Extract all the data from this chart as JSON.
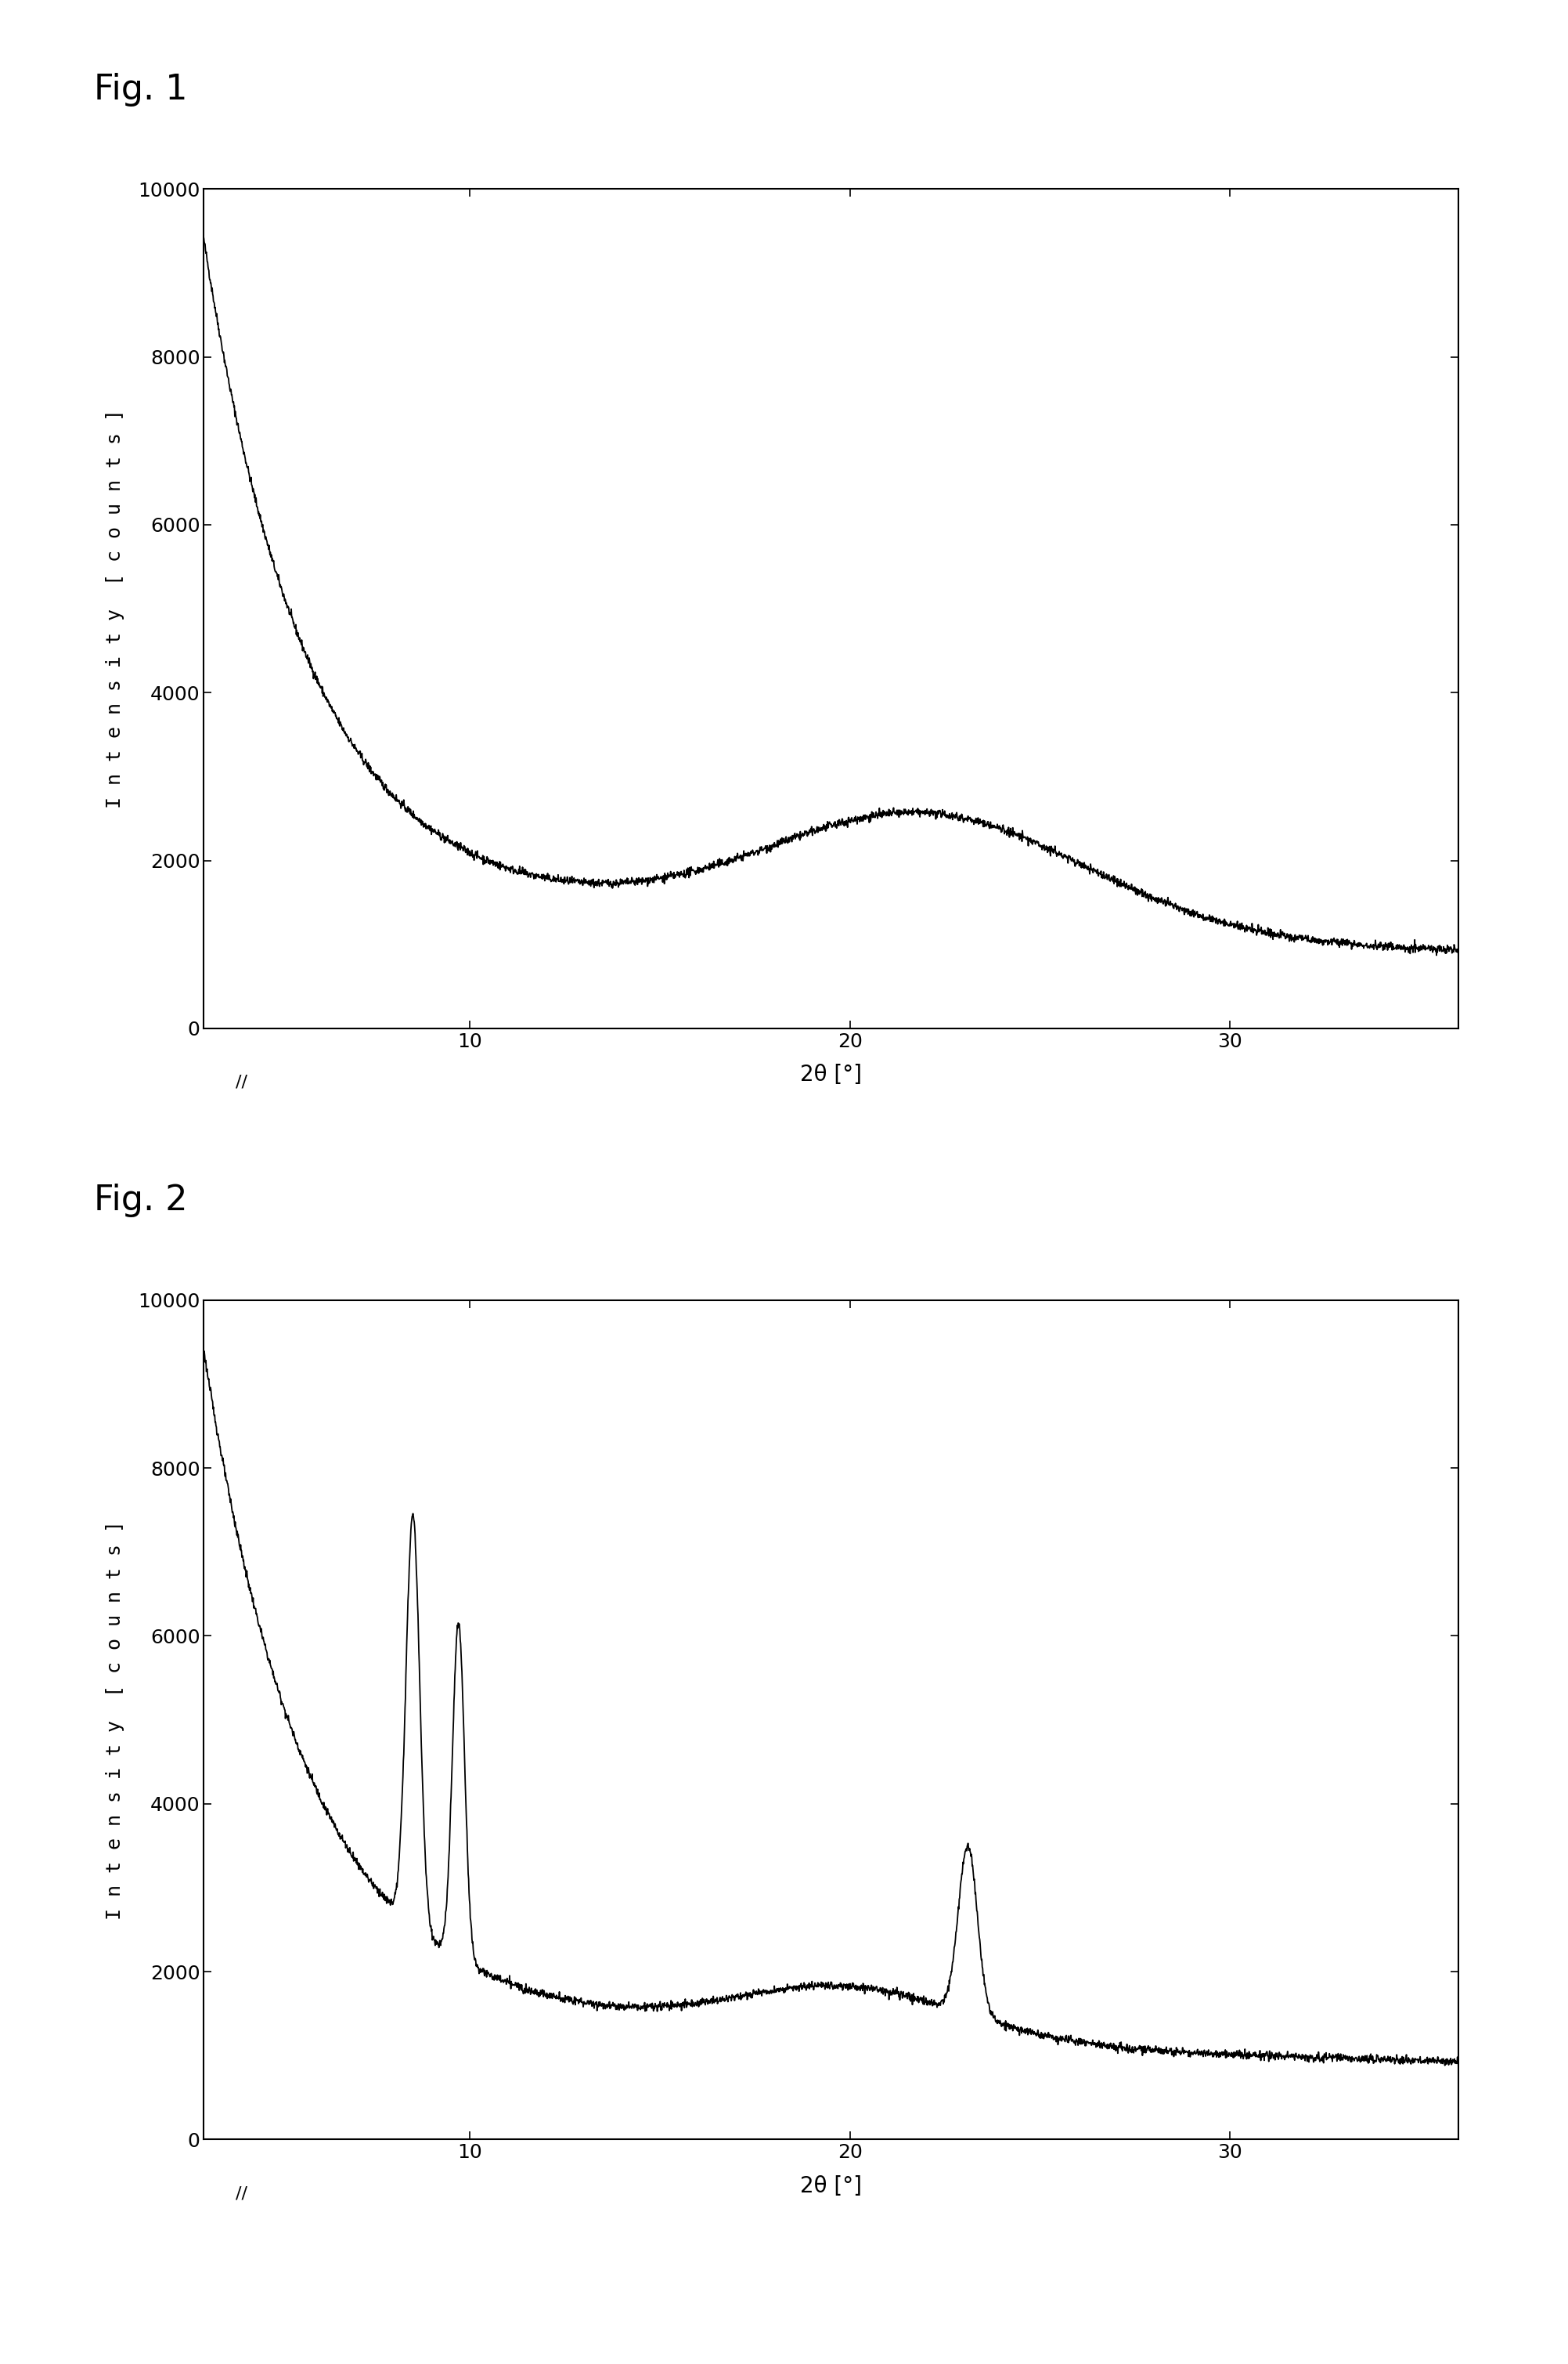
{
  "fig1_title": "Fig. 1",
  "fig2_title": "Fig. 2",
  "xlabel": "2θ [°]",
  "ylabel": "I n t e n s i t y  [ c o u n t s ]",
  "xlim": [
    3,
    36
  ],
  "ylim": [
    0,
    10000
  ],
  "yticks": [
    0,
    2000,
    4000,
    6000,
    8000,
    10000
  ],
  "xticks": [
    10,
    20,
    30
  ],
  "line_color": "#000000",
  "background_color": "#ffffff",
  "title_fontsize": 32,
  "axis_label_fontsize": 20,
  "tick_fontsize": 18,
  "ylabel_fontsize": 18
}
